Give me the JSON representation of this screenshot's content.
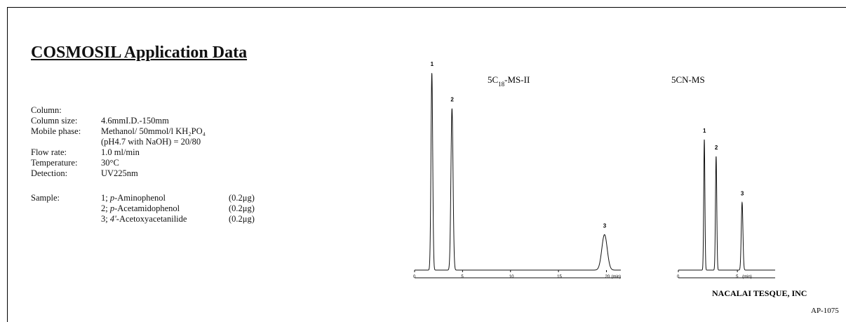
{
  "title": "COSMOSIL Application Data",
  "conditions": [
    {
      "label": "Column:",
      "value": ""
    },
    {
      "label": "Column size:",
      "value": "4.6mmI.D.-150mm"
    },
    {
      "label": "Mobile phase:",
      "value": "Methanol/ 50mmol/l KH₂PO₄"
    },
    {
      "label": "",
      "value": "(pH4.7 with NaOH) = 20/80"
    },
    {
      "label": "Flow rate:",
      "value": "1.0 ml/min"
    },
    {
      "label": "Temperature:",
      "value": "30°C"
    },
    {
      "label": "Detection:",
      "value": "UV225nm"
    }
  ],
  "sample": {
    "label": "Sample:",
    "items": [
      {
        "num": "1; ",
        "name": "p",
        "rest": "-Aminophenol",
        "amount": "(0.2μg)"
      },
      {
        "num": "2; ",
        "name": "p",
        "rest": "-Acetamidophenol",
        "amount": "(0.2μg)"
      },
      {
        "num": "3; ",
        "name": "4'",
        "rest": "-Acetoxyacetanilide",
        "amount": "(0.2μg)"
      }
    ]
  },
  "chart_data": [
    {
      "type": "line",
      "title": "5C18-MS-II",
      "title_parts": {
        "a": "5C",
        "sub": "18",
        "b": "-MS-II"
      },
      "xlabel": "(min)",
      "xlim": [
        0,
        21.5
      ],
      "ylim": [
        0,
        1.05
      ],
      "xticks": [
        0,
        5,
        10,
        15,
        20
      ],
      "grid": false,
      "peaks": [
        {
          "label": "1",
          "rt": 1.8,
          "height": 1.0,
          "width": 0.09
        },
        {
          "label": "2",
          "rt": 3.9,
          "height": 0.82,
          "width": 0.11
        },
        {
          "label": "3",
          "rt": 19.8,
          "height": 0.18,
          "width": 0.28
        }
      ]
    },
    {
      "type": "line",
      "title": "5CN-MS",
      "xlabel": "(min)",
      "xlim": [
        0,
        8.2
      ],
      "ylim": [
        0,
        1.05
      ],
      "xticks": [
        0,
        5
      ],
      "grid": false,
      "peaks": [
        {
          "label": "1",
          "rt": 2.2,
          "height": 0.85,
          "width": 0.05
        },
        {
          "label": "2",
          "rt": 3.2,
          "height": 0.74,
          "width": 0.055
        },
        {
          "label": "3",
          "rt": 5.4,
          "height": 0.44,
          "width": 0.07
        }
      ]
    }
  ],
  "footer": {
    "company": "NACALAI TESQUE, INC",
    "code": "AP-1075"
  }
}
